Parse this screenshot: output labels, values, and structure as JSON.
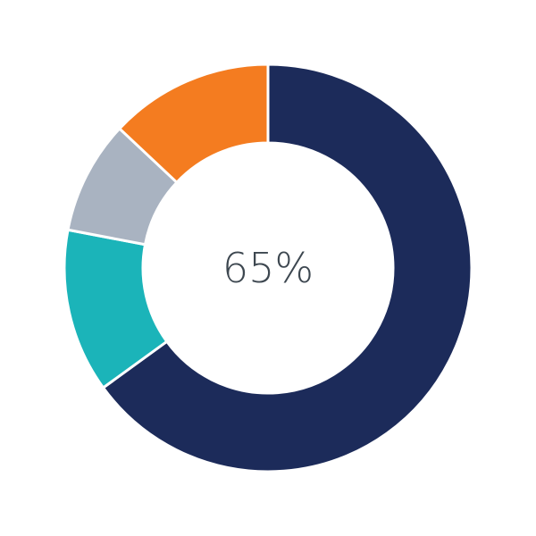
{
  "chart_data": {
    "type": "pie",
    "variant": "donut",
    "center_label": "65%",
    "slices": [
      {
        "value": 65,
        "color": "#1c2b5a"
      },
      {
        "value": 13,
        "color": "#1bb4b9"
      },
      {
        "value": 9,
        "color": "#a9b3c1"
      },
      {
        "value": 13,
        "color": "#f47c20"
      }
    ],
    "start_angle": "top",
    "direction": "clockwise",
    "legend": "none"
  }
}
